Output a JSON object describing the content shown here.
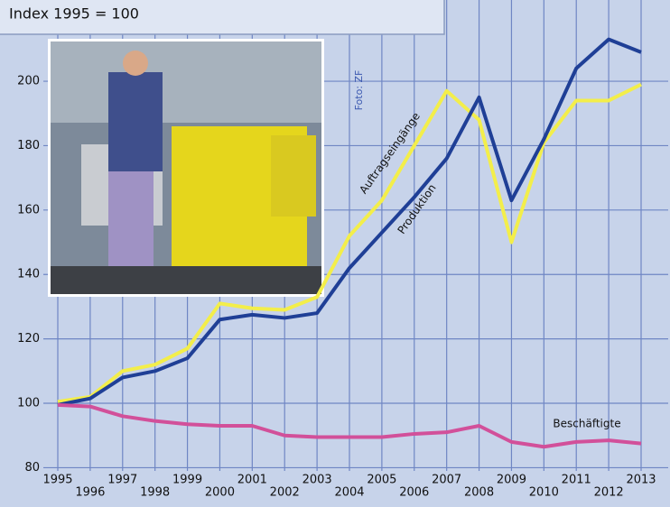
{
  "chart_data": {
    "type": "line",
    "title": "Index 1995 = 100",
    "annotation": "Foto: ZF",
    "x": [
      1995,
      1996,
      1997,
      1998,
      1999,
      2000,
      2001,
      2002,
      2003,
      2004,
      2005,
      2006,
      2007,
      2008,
      2009,
      2010,
      2011,
      2012,
      2013
    ],
    "xlim": [
      1995,
      2013
    ],
    "ylim": [
      79,
      222
    ],
    "yticks": [
      80,
      100,
      120,
      140,
      160,
      180,
      200
    ],
    "grid": true,
    "series": [
      {
        "name": "Produktion",
        "color": "#1f3f96",
        "values": [
          99.5,
          101.5,
          108,
          110,
          114,
          126,
          127.5,
          126.5,
          128,
          142,
          153,
          164,
          176,
          195,
          163,
          182,
          204,
          213,
          209
        ]
      },
      {
        "name": "Auftragseingänge",
        "color": "#f3ee4a",
        "values": [
          100.5,
          102,
          110,
          112,
          117,
          131,
          129.5,
          129,
          133,
          152,
          163,
          180,
          197,
          188,
          150,
          181,
          194,
          194,
          199
        ]
      },
      {
        "name": "Beschäftigte",
        "color": "#d2509a",
        "values": [
          99.5,
          99,
          96,
          94.5,
          93.5,
          93,
          93,
          90,
          89.5,
          89.5,
          89.5,
          90.5,
          91,
          93,
          88,
          86.5,
          88,
          88.5,
          87.5
        ]
      }
    ]
  }
}
